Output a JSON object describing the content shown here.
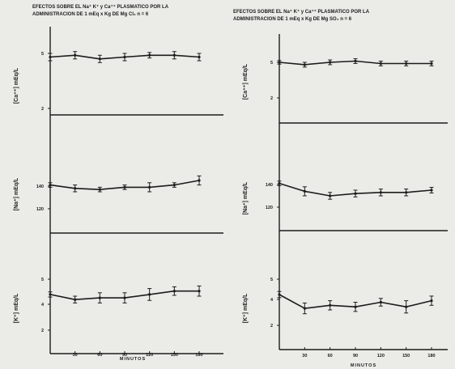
{
  "chart_data": [
    {
      "type": "line",
      "title": [
        "EFECTOS SOBRE EL Na⁺ K⁺ y Ca⁺⁺ PLASMATICO POR LA",
        "ADMINISTRACION DE 1 mEq x Kg DE Mg Cl₂  n = 6"
      ],
      "xlabel": "MINUTOS",
      "xticks": [
        "30",
        "60",
        "90",
        "120",
        "150",
        "180"
      ],
      "panels": [
        {
          "ylabel": "[Ca⁺⁺] mEq/L",
          "yticks": [
            "5",
            "2"
          ],
          "x": [
            0,
            30,
            60,
            90,
            120,
            150,
            180
          ],
          "y": [
            4.8,
            4.9,
            4.7,
            4.8,
            4.9,
            4.9,
            4.8
          ],
          "err": [
            0.2,
            0.2,
            0.2,
            0.2,
            0.15,
            0.2,
            0.2
          ]
        },
        {
          "ylabel": "[Na⁺] mEq/L",
          "yticks": [
            "140",
            "120"
          ],
          "x": [
            0,
            30,
            60,
            90,
            120,
            150,
            180
          ],
          "y": [
            141,
            138,
            137,
            139,
            139,
            141,
            145
          ],
          "err": [
            2,
            3,
            2,
            2,
            4,
            2,
            4
          ]
        },
        {
          "ylabel": "[K⁺] mEq/L",
          "yticks": [
            "5",
            "4",
            "2"
          ],
          "x": [
            0,
            30,
            60,
            90,
            120,
            150,
            180
          ],
          "y": [
            4.1,
            3.8,
            3.9,
            3.9,
            4.1,
            4.3,
            4.3
          ],
          "err": [
            0.15,
            0.2,
            0.3,
            0.3,
            0.35,
            0.25,
            0.3
          ]
        }
      ]
    },
    {
      "type": "line",
      "title": [
        "EFECTOS SOBRE EL Na⁺ K⁺ y Ca⁺⁺ PLASMATICO POR LA",
        "ADMINISTRACION DE 1 mEq x Kg DE Mg SO₄  n = 6"
      ],
      "xlabel": "MINUTOS",
      "xticks": [
        "30",
        "60",
        "90",
        "120",
        "150",
        "180"
      ],
      "panels": [
        {
          "ylabel": "[Ca⁺⁺] mEq/L",
          "yticks": [
            "5",
            "2"
          ],
          "x": [
            0,
            30,
            60,
            90,
            120,
            150,
            180
          ],
          "y": [
            5.0,
            4.8,
            5.0,
            5.1,
            4.9,
            4.9,
            4.9
          ],
          "err": [
            0.15,
            0.2,
            0.2,
            0.2,
            0.2,
            0.2,
            0.2
          ]
        },
        {
          "ylabel": "[Na⁺] mEq/L",
          "yticks": [
            "140",
            "120"
          ],
          "x": [
            0,
            30,
            60,
            90,
            120,
            150,
            180
          ],
          "y": [
            141,
            134,
            130,
            132,
            133,
            133,
            135
          ],
          "err": [
            2,
            4,
            3,
            3,
            3,
            3,
            2.5
          ]
        },
        {
          "ylabel": "[K⁺] mEq/L",
          "yticks": [
            "5",
            "4",
            "2"
          ],
          "x": [
            0,
            30,
            60,
            90,
            120,
            150,
            180
          ],
          "y": [
            4.0,
            3.1,
            3.3,
            3.2,
            3.5,
            3.2,
            3.6
          ],
          "err": [
            0.2,
            0.35,
            0.3,
            0.3,
            0.25,
            0.4,
            0.3
          ]
        }
      ]
    }
  ]
}
